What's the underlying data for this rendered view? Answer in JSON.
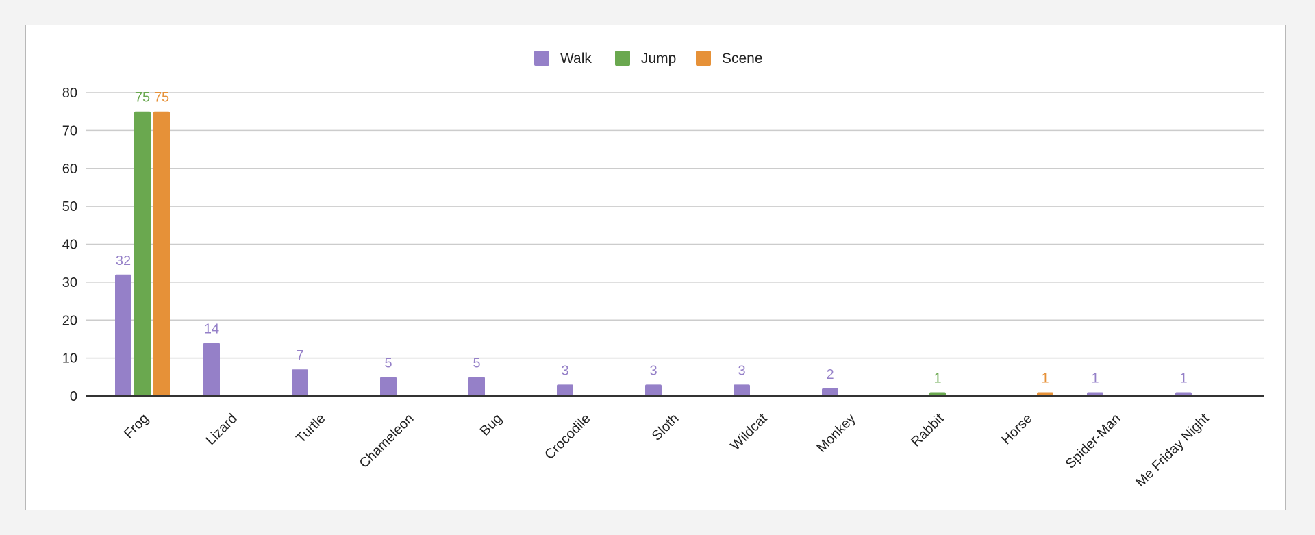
{
  "chart_data": {
    "type": "bar",
    "title": "",
    "xlabel": "",
    "ylabel": "",
    "ylim": [
      0,
      80
    ],
    "yticks": [
      0,
      10,
      20,
      30,
      40,
      50,
      60,
      70,
      80
    ],
    "grid": true,
    "legend_position": "top-center",
    "categories": [
      "Frog",
      "Lizard",
      "Turtle",
      "Chameleon",
      "Bug",
      "Crocodile",
      "Sloth",
      "Wildcat",
      "Monkey",
      "Rabbit",
      "Horse",
      "Spider-Man",
      "Me Friday Night"
    ],
    "series": [
      {
        "name": "Walk",
        "color": "#9580c8",
        "values": [
          32,
          14,
          7,
          5,
          5,
          3,
          3,
          3,
          2,
          0,
          0,
          1,
          1
        ]
      },
      {
        "name": "Jump",
        "color": "#6aa84f",
        "values": [
          75,
          0,
          0,
          0,
          0,
          0,
          0,
          0,
          0,
          1,
          0,
          0,
          0
        ]
      },
      {
        "name": "Scene",
        "color": "#e69138",
        "values": [
          75,
          0,
          0,
          0,
          0,
          0,
          0,
          0,
          0,
          0,
          1,
          0,
          0
        ]
      }
    ]
  }
}
